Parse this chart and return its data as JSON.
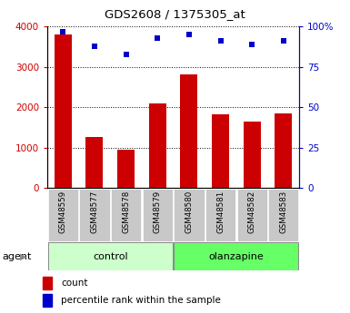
{
  "title": "GDS2608 / 1375305_at",
  "categories": [
    "GSM48559",
    "GSM48577",
    "GSM48578",
    "GSM48579",
    "GSM48580",
    "GSM48581",
    "GSM48582",
    "GSM48583"
  ],
  "counts": [
    3800,
    1270,
    940,
    2100,
    2820,
    1820,
    1650,
    1840
  ],
  "percentiles": [
    97,
    88,
    83,
    93,
    95,
    91,
    89,
    91
  ],
  "groups": [
    "control",
    "control",
    "control",
    "control",
    "olanzapine",
    "olanzapine",
    "olanzapine",
    "olanzapine"
  ],
  "bar_color": "#cc0000",
  "dot_color": "#0000cc",
  "control_color": "#ccffcc",
  "olanzapine_color": "#66ff66",
  "tick_bg_color": "#c8c8c8",
  "ylim_left": [
    0,
    4000
  ],
  "ylim_right": [
    0,
    100
  ],
  "yticks_left": [
    0,
    1000,
    2000,
    3000,
    4000
  ],
  "yticks_right": [
    0,
    25,
    50,
    75,
    100
  ],
  "ytick_labels_right": [
    "0",
    "25",
    "50",
    "75",
    "100%"
  ]
}
